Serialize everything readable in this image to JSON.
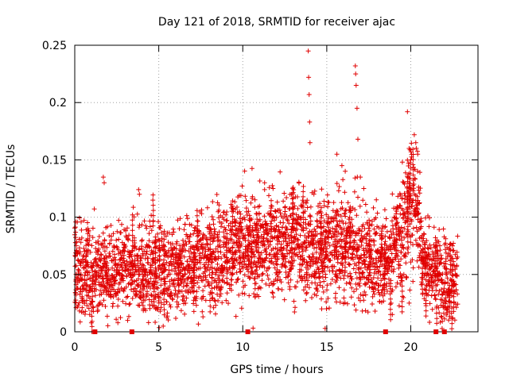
{
  "chart_data": {
    "type": "scatter",
    "title": "Day 121 of 2018, SRMTID for receiver ajac",
    "xlabel": "GPS time / hours",
    "ylabel": "SRMTID / TECUs",
    "xlim": [
      0,
      24
    ],
    "ylim": [
      0,
      0.25
    ],
    "x_ticks": [
      0,
      5,
      10,
      15,
      20
    ],
    "x_tick_labels": [
      "0",
      "5",
      "10",
      "15",
      "20"
    ],
    "y_ticks": [
      0,
      0.05,
      0.1,
      0.15,
      0.2,
      0.25
    ],
    "y_tick_labels": [
      "0",
      "0.05",
      "0.1",
      "0.15",
      "0.2",
      "0.25"
    ],
    "grid": true,
    "marker": "+",
    "series_color": "#e00000",
    "gap_markers_x": [
      1.2,
      3.4,
      10.3,
      18.5,
      21.5,
      22.0
    ],
    "trend": [
      [
        0.0,
        0.052
      ],
      [
        1.0,
        0.05
      ],
      [
        2.0,
        0.055
      ],
      [
        3.0,
        0.05
      ],
      [
        4.0,
        0.055
      ],
      [
        5.0,
        0.052
      ],
      [
        6.0,
        0.055
      ],
      [
        7.0,
        0.06
      ],
      [
        8.0,
        0.065
      ],
      [
        9.0,
        0.07
      ],
      [
        10.0,
        0.075
      ],
      [
        11.0,
        0.078
      ],
      [
        12.0,
        0.075
      ],
      [
        13.0,
        0.08
      ],
      [
        14.0,
        0.075
      ],
      [
        15.0,
        0.07
      ],
      [
        16.0,
        0.075
      ],
      [
        17.0,
        0.068
      ],
      [
        18.0,
        0.06
      ],
      [
        19.0,
        0.07
      ],
      [
        19.8,
        0.1
      ],
      [
        20.3,
        0.12
      ],
      [
        20.8,
        0.06
      ],
      [
        21.5,
        0.05
      ],
      [
        22.0,
        0.045
      ],
      [
        22.8,
        0.05
      ]
    ],
    "spikes": [
      [
        1.7,
        0.135
      ],
      [
        1.75,
        0.13
      ],
      [
        3.8,
        0.124
      ],
      [
        3.85,
        0.12
      ],
      [
        11.3,
        0.13
      ],
      [
        11.8,
        0.125
      ],
      [
        12.9,
        0.12
      ],
      [
        13.9,
        0.245
      ],
      [
        13.92,
        0.222
      ],
      [
        13.95,
        0.207
      ],
      [
        13.98,
        0.183
      ],
      [
        14.0,
        0.165
      ],
      [
        15.6,
        0.155
      ],
      [
        15.9,
        0.145
      ],
      [
        16.1,
        0.14
      ],
      [
        16.7,
        0.232
      ],
      [
        16.72,
        0.225
      ],
      [
        16.75,
        0.215
      ],
      [
        16.8,
        0.195
      ],
      [
        16.85,
        0.168
      ],
      [
        17.0,
        0.135
      ],
      [
        17.2,
        0.125
      ],
      [
        19.5,
        0.148
      ],
      [
        19.8,
        0.192
      ],
      [
        19.9,
        0.16
      ],
      [
        20.0,
        0.15
      ],
      [
        20.3,
        0.165
      ],
      [
        20.4,
        0.14
      ],
      [
        14.9,
        0.003
      ],
      [
        14.7,
        0.02
      ],
      [
        3.15,
        0.01
      ],
      [
        18.9,
        0.015
      ],
      [
        19.9,
        0.025
      ]
    ]
  }
}
